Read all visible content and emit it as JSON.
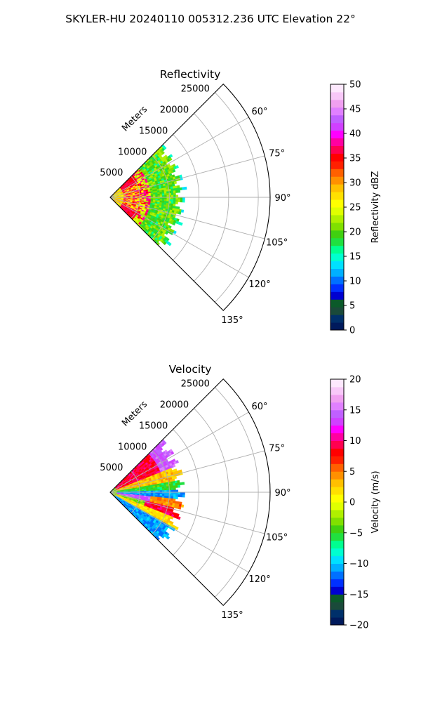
{
  "page": {
    "title": "SKYLER-HU  20240110  005312.236 UTC Elevation 22°"
  },
  "chart_data": [
    {
      "type": "heatmap",
      "projection": "polar-sector",
      "title": "Reflectivity",
      "radial_label": "Meters",
      "radial_ticks": [
        "5000",
        "10000",
        "15000",
        "20000",
        "25000"
      ],
      "radial_tick_values": [
        5000,
        10000,
        15000,
        20000,
        25000
      ],
      "rmax": 27000,
      "angle_ticks": [
        "60°",
        "75°",
        "90°",
        "105°",
        "120°",
        "135°"
      ],
      "angle_tick_values": [
        60,
        75,
        90,
        105,
        120,
        135
      ],
      "theta_range_deg": [
        45,
        135
      ],
      "grid": true,
      "data_extent_m": 13000,
      "colorbar": {
        "label": "Reflectivity dBZ",
        "min": 0,
        "max": 50,
        "ticks": [
          "0",
          "5",
          "10",
          "15",
          "20",
          "25",
          "30",
          "35",
          "40",
          "45",
          "50"
        ],
        "tick_values": [
          0,
          5,
          10,
          15,
          20,
          25,
          30,
          35,
          40,
          45,
          50
        ],
        "colors": [
          "#001a5c",
          "#00306a",
          "#1a4a3a",
          "#0b5a2a",
          "#0000d0",
          "#0030ff",
          "#0070ff",
          "#00b0ff",
          "#00e0ff",
          "#00ffd0",
          "#00ff90",
          "#20e040",
          "#40d010",
          "#80e000",
          "#b0f000",
          "#e0ff00",
          "#ffff00",
          "#ffe000",
          "#ffc000",
          "#ff9000",
          "#ff6000",
          "#ff2000",
          "#ff0000",
          "#ff0050",
          "#ff00a0",
          "#ff00ff",
          "#d040ff",
          "#c060ff",
          "#e080ff",
          "#f0a0f0",
          "#f8c8f8",
          "#fde8fd"
        ]
      }
    },
    {
      "type": "heatmap",
      "projection": "polar-sector",
      "title": "Velocity",
      "radial_label": "Meters",
      "radial_ticks": [
        "5000",
        "10000",
        "15000",
        "20000",
        "25000"
      ],
      "radial_tick_values": [
        5000,
        10000,
        15000,
        20000,
        25000
      ],
      "rmax": 27000,
      "angle_ticks": [
        "60°",
        "75°",
        "90°",
        "105°",
        "120°",
        "135°"
      ],
      "angle_tick_values": [
        60,
        75,
        90,
        105,
        120,
        135
      ],
      "theta_range_deg": [
        45,
        135
      ],
      "grid": true,
      "data_extent_m": 13000,
      "colorbar": {
        "label": "Velocity (m/s)",
        "min": -20,
        "max": 20,
        "ticks": [
          "−20",
          "−15",
          "−10",
          "−5",
          "0",
          "5",
          "10",
          "15",
          "20"
        ],
        "tick_values": [
          -20,
          -15,
          -10,
          -5,
          0,
          5,
          10,
          15,
          20
        ],
        "colors": [
          "#001a5c",
          "#00306a",
          "#1a4a3a",
          "#0b5a2a",
          "#0000d0",
          "#0030ff",
          "#0070ff",
          "#00b0ff",
          "#00e0ff",
          "#00ffd0",
          "#00ff90",
          "#20e040",
          "#40d010",
          "#80e000",
          "#b0f000",
          "#e0ff00",
          "#ffff00",
          "#ffe000",
          "#ffc000",
          "#ff9000",
          "#ff6000",
          "#ff2000",
          "#ff0000",
          "#ff0050",
          "#ff00a0",
          "#ff00ff",
          "#d040ff",
          "#c060ff",
          "#e080ff",
          "#f0a0f0",
          "#f8c8f8",
          "#fde8fd"
        ]
      }
    }
  ]
}
